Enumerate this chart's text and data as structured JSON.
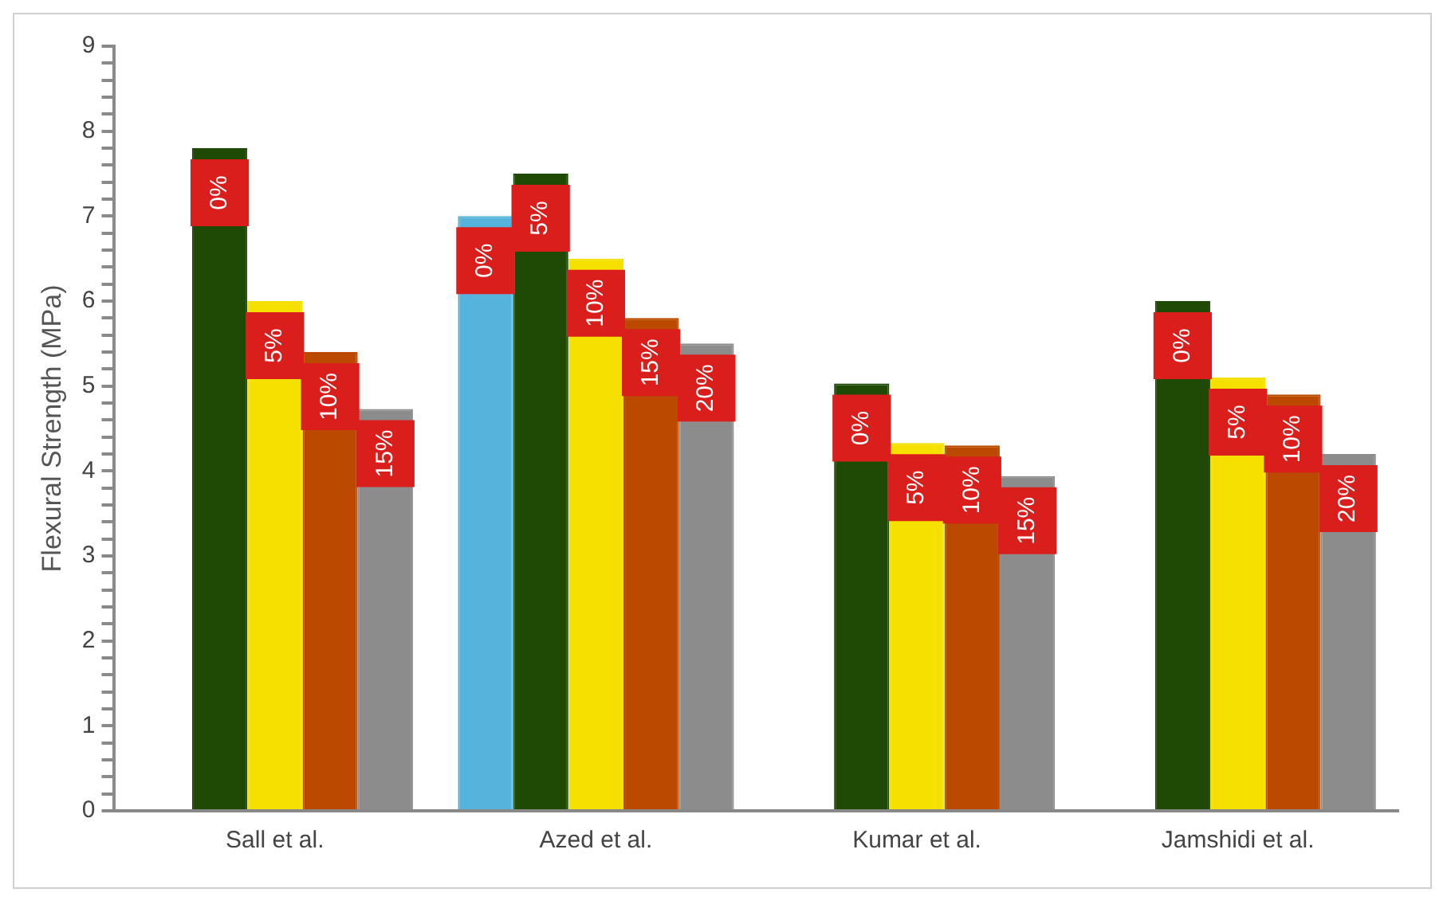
{
  "chart_data": {
    "type": "bar",
    "ylabel": "Flexural Strength (MPa)",
    "categories": [
      "Sall et al.",
      "Azed et al.",
      "Kumar et al.",
      "Jamshidi et al."
    ],
    "series": [
      {
        "color": "#56b4dc",
        "values": [
          null,
          7.0,
          null,
          null
        ]
      },
      {
        "color": "#1f4a06",
        "values": [
          7.8,
          7.5,
          5.03,
          6.0
        ]
      },
      {
        "color": "#f5e000",
        "values": [
          6.0,
          6.5,
          4.33,
          5.1
        ]
      },
      {
        "color": "#bb4a00",
        "values": [
          5.4,
          5.8,
          4.3,
          4.9
        ]
      },
      {
        "color": "#8c8c8c",
        "values": [
          4.73,
          5.5,
          3.94,
          4.2
        ]
      }
    ],
    "annotations": [
      "0%",
      "5%",
      "10%",
      "15%",
      "0%",
      "5%",
      "10%",
      "15%",
      "20%",
      "0%",
      "5%",
      "10%",
      "15%",
      "0%",
      "5%",
      "10%",
      "20%"
    ],
    "ylim": [
      0,
      9
    ],
    "yticks": [
      0,
      {
        "value": 0.2,
        "label": null
      },
      {
        "value": 0.4,
        "label": null
      },
      {
        "value": 0.6,
        "label": null
      },
      {
        "value": 0.8,
        "label": null
      },
      1,
      {
        "value": 1.2,
        "label": null
      },
      {
        "value": 1.4,
        "label": null
      },
      {
        "value": 1.6,
        "label": null
      },
      {
        "value": 1.8,
        "label": null
      },
      2,
      {
        "value": 2.2,
        "label": null
      },
      {
        "value": 2.4,
        "label": null
      },
      {
        "value": 2.6,
        "label": null
      },
      {
        "value": 2.8,
        "label": null
      },
      3,
      {
        "value": 3.2,
        "label": null
      },
      {
        "value": 3.4,
        "label": null
      },
      {
        "value": 3.6,
        "label": null
      },
      {
        "value": 3.8,
        "label": null
      },
      4,
      {
        "value": 4.2,
        "label": null
      },
      {
        "value": 4.4,
        "label": null
      },
      {
        "value": 4.6,
        "label": null
      },
      {
        "value": 4.8,
        "label": null
      },
      5,
      {
        "value": 5.2,
        "label": null
      },
      {
        "value": 5.4,
        "label": null
      },
      {
        "value": 5.6,
        "label": null
      },
      {
        "value": 5.8,
        "label": null
      },
      6,
      {
        "value": 6.2,
        "label": null
      },
      {
        "value": 6.4,
        "label": null
      },
      {
        "value": 6.6,
        "label": null
      },
      {
        "value": 6.8,
        "label": null
      },
      7,
      {
        "value": 7.2,
        "label": null
      },
      {
        "value": 7.4,
        "label": null
      },
      {
        "value": 7.6,
        "label": null
      },
      {
        "value": 7.8,
        "label": null
      },
      8,
      {
        "value": 8.2,
        "label": null
      },
      {
        "value": 8.4,
        "label": null
      },
      {
        "value": 8.6,
        "label": null
      },
      {
        "value": 8.8,
        "label": null
      },
      9
    ],
    "grid": false,
    "legend": false
  }
}
